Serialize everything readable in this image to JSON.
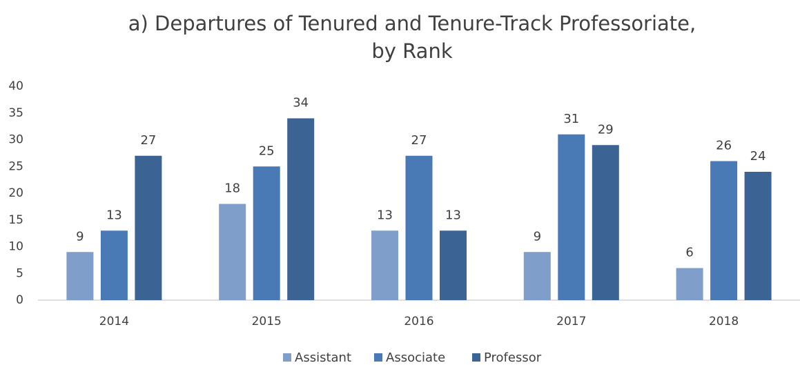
{
  "chart_data": {
    "type": "bar",
    "title": [
      "a) Departures of Tenured and Tenure-Track Professoriate,",
      "by Rank"
    ],
    "categories": [
      "2014",
      "2015",
      "2016",
      "2017",
      "2018"
    ],
    "series": [
      {
        "name": "Assistant",
        "color": "#7f9ec9",
        "values": [
          9,
          18,
          13,
          9,
          6
        ]
      },
      {
        "name": "Associate",
        "color": "#4a7ab5",
        "values": [
          13,
          25,
          27,
          31,
          26
        ]
      },
      {
        "name": "Professor",
        "color": "#3b6393",
        "values": [
          27,
          34,
          13,
          29,
          24
        ]
      }
    ],
    "ylim": [
      0,
      40
    ],
    "yticks": [
      0,
      5,
      10,
      15,
      20,
      25,
      30,
      35,
      40
    ],
    "grid": false,
    "legend": "bottom"
  }
}
